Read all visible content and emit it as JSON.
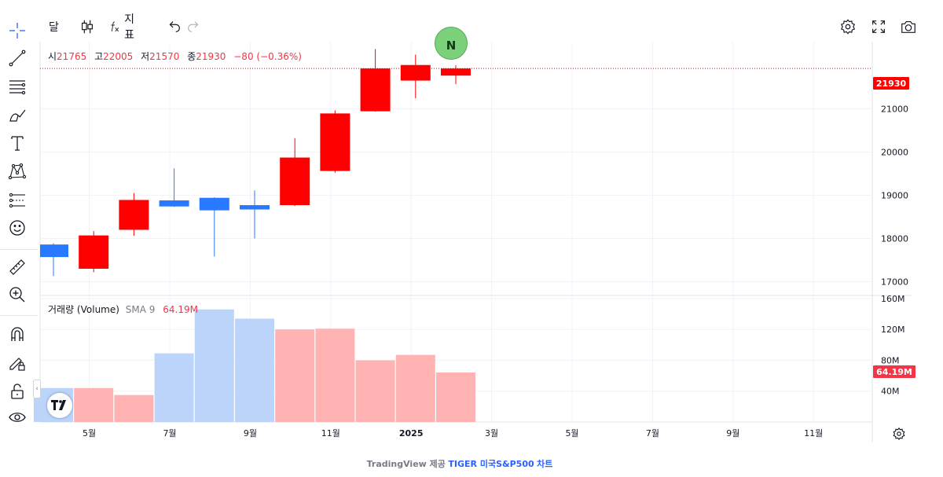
{
  "toolbar": {
    "interval_label": "달",
    "indicators_label": "지표"
  },
  "legend": {
    "open_label": "시",
    "open": "21765",
    "high_label": "고",
    "high": "22005",
    "low_label": "저",
    "low": "21570",
    "close_label": "종",
    "close": "21930",
    "change": "−80 (−0.36%)"
  },
  "volume_legend": {
    "name": "거래량 (Volume)",
    "sma_label": "SMA 9",
    "sma_value": "64.19M"
  },
  "price_badge": "21930",
  "volume_badge": "64.19M",
  "news_marker": "N",
  "footer": {
    "lead": "TradingView 제공",
    "link": "TIGER 미국S&P500",
    "tail": "차트"
  },
  "colors": {
    "up": "#ff0000",
    "down": "#2979ff",
    "volume_up": "#ffb3b3",
    "volume_down": "#bcd4fa",
    "grid": "#f0f3fa"
  },
  "icons": [
    "crosshair-icon",
    "trend-line-icon",
    "fib-icon",
    "brush-icon",
    "text-icon",
    "pattern-icon",
    "forecast-icon",
    "emoji-icon",
    "ruler-icon",
    "zoom-in-icon",
    "magnet-icon",
    "lock-draw-icon",
    "lock-icon",
    "eye-icon",
    "candles-icon",
    "fx-icon",
    "undo-icon",
    "redo-icon",
    "settings-icon",
    "fullscreen-icon",
    "camera-icon"
  ],
  "chart_data": {
    "type": "candlestick",
    "interval": "month",
    "x_ticks": [
      "5월",
      "7월",
      "9월",
      "11월",
      "2025",
      "3월",
      "5월",
      "7월",
      "9월",
      "11월"
    ],
    "price_ticks": [
      "21000",
      "20000",
      "19000",
      "18000",
      "17000"
    ],
    "price_ylim": [
      16700,
      22550
    ],
    "volume_ticks": [
      "160M",
      "120M",
      "80M",
      "40M"
    ],
    "volume_ylim": [
      0,
      163
    ],
    "candles": [
      {
        "open": 17860,
        "high": 17890,
        "low": 17130,
        "close": 17570,
        "volume": 44
      },
      {
        "open": 17300,
        "high": 18170,
        "low": 17220,
        "close": 18070,
        "volume": 44
      },
      {
        "open": 18200,
        "high": 19050,
        "low": 18060,
        "close": 18890,
        "volume": 35
      },
      {
        "open": 18880,
        "high": 19620,
        "low": 18730,
        "close": 18740,
        "volume": 89
      },
      {
        "open": 18940,
        "high": 18950,
        "low": 17580,
        "close": 18650,
        "volume": 146
      },
      {
        "open": 18770,
        "high": 19110,
        "low": 18000,
        "close": 18670,
        "volume": 134
      },
      {
        "open": 18770,
        "high": 20320,
        "low": 18750,
        "close": 19870,
        "volume": 120
      },
      {
        "open": 19560,
        "high": 20960,
        "low": 19520,
        "close": 20890,
        "volume": 121
      },
      {
        "open": 20940,
        "high": 22380,
        "low": 20930,
        "close": 21930,
        "volume": 80
      },
      {
        "open": 21650,
        "high": 22250,
        "low": 21240,
        "close": 22010,
        "volume": 87
      },
      {
        "open": 21765,
        "high": 22005,
        "low": 21570,
        "close": 21930,
        "volume": 64.19
      }
    ],
    "last_price": 21930
  }
}
